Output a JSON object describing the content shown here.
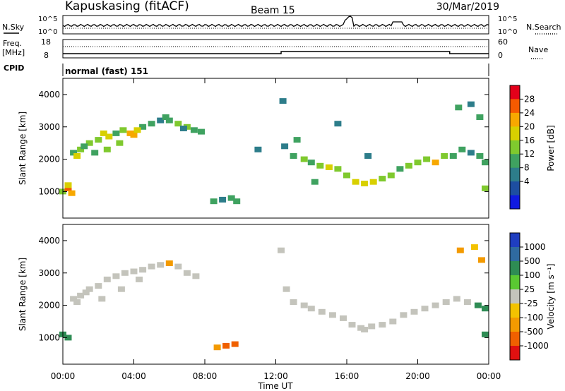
{
  "header": {
    "station": "Kapuskasing (fitACF)",
    "beam": "Beam 15",
    "date": "30/Mar/2019"
  },
  "noise_panel": {
    "left_label": "N.Sky",
    "right_label": "N.Search",
    "left_ticks": [
      "10^5",
      "10^0"
    ],
    "right_ticks": [
      "10^5",
      "10^0"
    ]
  },
  "freq_panel": {
    "left_label_top": "Freq.",
    "left_label_unit": "[MHz]",
    "left_ticks": [
      "18",
      "8"
    ],
    "right_label": "Nave",
    "right_ticks": [
      "60",
      "0"
    ]
  },
  "cpid_panel": {
    "label": "CPID",
    "value": "normal (fast) 151"
  },
  "power_colorbar": {
    "label": "Power [dB]",
    "ticks": [
      "28",
      "24",
      "20",
      "16",
      "12",
      "8",
      "4"
    ],
    "colors": [
      "#e3001a",
      "#f55a00",
      "#f7a800",
      "#d8d000",
      "#7fc92e",
      "#3fa260",
      "#2d7d8a",
      "#1d4ea0",
      "#0f1ae0"
    ]
  },
  "velocity_colorbar": {
    "label": "Velocity [m s⁻¹]",
    "ticks": [
      "1000",
      "500",
      "100",
      "25",
      "-25",
      "-100",
      "-500",
      "-1000"
    ],
    "colors": [
      "#1f3ec0",
      "#2f6aa0",
      "#2e8c54",
      "#5ac832",
      "#c4c4bc",
      "#f3c200",
      "#f39a00",
      "#f06000",
      "#e01010"
    ]
  },
  "chart_data": [
    {
      "type": "heatmap",
      "name": "power",
      "ylabel": "Slant Range [km]",
      "xlim": [
        0,
        24
      ],
      "ylim": [
        180,
        4500
      ],
      "yticks": [
        "4000",
        "3000",
        "2000",
        "1000"
      ],
      "xticks": [
        "00:00",
        "04:00",
        "08:00",
        "12:00",
        "16:00",
        "20:00",
        "00:00"
      ],
      "colorbar_label": "Power [dB]",
      "cells": [
        [
          0.0,
          1000,
          14
        ],
        [
          0.3,
          1100,
          26
        ],
        [
          0.5,
          950,
          22
        ],
        [
          0.3,
          1200,
          18
        ],
        [
          0.6,
          2200,
          12
        ],
        [
          1.0,
          2300,
          14
        ],
        [
          1.5,
          2500,
          16
        ],
        [
          2.0,
          2600,
          14
        ],
        [
          2.3,
          2800,
          20
        ],
        [
          2.6,
          2700,
          18
        ],
        [
          3.0,
          2800,
          12
        ],
        [
          3.4,
          2900,
          14
        ],
        [
          3.8,
          2800,
          24
        ],
        [
          4.0,
          2750,
          22
        ],
        [
          4.5,
          3000,
          12
        ],
        [
          5.0,
          3100,
          10
        ],
        [
          5.5,
          3200,
          8
        ],
        [
          6.0,
          3200,
          12
        ],
        [
          6.5,
          3100,
          14
        ],
        [
          7.0,
          3000,
          16
        ],
        [
          7.4,
          2900,
          12
        ],
        [
          0.8,
          2100,
          18
        ],
        [
          1.2,
          2400,
          10
        ],
        [
          1.8,
          2200,
          12
        ],
        [
          2.5,
          2300,
          14
        ],
        [
          3.2,
          2500,
          16
        ],
        [
          4.2,
          2900,
          18
        ],
        [
          5.8,
          3300,
          10
        ],
        [
          6.8,
          2950,
          8
        ],
        [
          7.8,
          2850,
          12
        ],
        [
          8.5,
          700,
          10
        ],
        [
          9.0,
          750,
          8
        ],
        [
          9.5,
          800,
          12
        ],
        [
          9.8,
          700,
          10
        ],
        [
          13.0,
          2100,
          12
        ],
        [
          13.6,
          2000,
          14
        ],
        [
          14.0,
          1900,
          12
        ],
        [
          14.5,
          1800,
          16
        ],
        [
          15.0,
          1750,
          18
        ],
        [
          15.5,
          1700,
          14
        ],
        [
          16.0,
          1500,
          16
        ],
        [
          16.5,
          1300,
          18
        ],
        [
          17.0,
          1250,
          20
        ],
        [
          17.5,
          1300,
          18
        ],
        [
          18.0,
          1400,
          16
        ],
        [
          18.5,
          1500,
          14
        ],
        [
          19.0,
          1700,
          12
        ],
        [
          19.5,
          1800,
          16
        ],
        [
          20.0,
          1900,
          14
        ],
        [
          20.5,
          2000,
          16
        ],
        [
          21.0,
          1900,
          22
        ],
        [
          21.5,
          2100,
          14
        ],
        [
          22.0,
          2100,
          12
        ],
        [
          22.5,
          2300,
          10
        ],
        [
          23.0,
          2200,
          8
        ],
        [
          23.5,
          2100,
          10
        ],
        [
          23.8,
          1900,
          12
        ],
        [
          12.5,
          2400,
          8
        ],
        [
          13.2,
          2600,
          10
        ],
        [
          17.2,
          2100,
          8
        ],
        [
          14.2,
          1300,
          10
        ],
        [
          22.3,
          3600,
          10
        ],
        [
          23.0,
          3700,
          8
        ],
        [
          23.5,
          3300,
          12
        ],
        [
          23.8,
          1100,
          16
        ],
        [
          11.0,
          2300,
          8
        ],
        [
          12.4,
          3800,
          8
        ],
        [
          15.5,
          3100,
          6
        ]
      ]
    },
    {
      "type": "heatmap",
      "name": "velocity",
      "ylabel": "Slant Range [km]",
      "xlim": [
        0,
        24
      ],
      "ylim": [
        180,
        4500
      ],
      "yticks": [
        "4000",
        "3000",
        "2000",
        "1000"
      ],
      "xticks": [
        "00:00",
        "04:00",
        "08:00",
        "12:00",
        "16:00",
        "20:00",
        "00:00"
      ],
      "xlabel": "Time UT",
      "colorbar_label": "Velocity [m s⁻¹]",
      "cells": [
        [
          0.0,
          1100,
          300
        ],
        [
          0.3,
          1000,
          200
        ],
        [
          0.6,
          2200,
          0
        ],
        [
          1.0,
          2300,
          10
        ],
        [
          1.5,
          2500,
          0
        ],
        [
          2.0,
          2600,
          -10
        ],
        [
          2.5,
          2800,
          5
        ],
        [
          3.0,
          2900,
          0
        ],
        [
          3.5,
          3000,
          -5
        ],
        [
          4.0,
          3050,
          0
        ],
        [
          4.5,
          3100,
          10
        ],
        [
          5.0,
          3200,
          0
        ],
        [
          5.5,
          3250,
          -10
        ],
        [
          6.0,
          3300,
          -200
        ],
        [
          6.5,
          3200,
          0
        ],
        [
          7.0,
          3000,
          0
        ],
        [
          7.5,
          2900,
          5
        ],
        [
          0.8,
          2100,
          0
        ],
        [
          1.3,
          2400,
          0
        ],
        [
          2.2,
          2200,
          0
        ],
        [
          3.3,
          2500,
          0
        ],
        [
          4.3,
          2800,
          -5
        ],
        [
          8.7,
          700,
          -300
        ],
        [
          9.2,
          750,
          -600
        ],
        [
          9.7,
          800,
          -700
        ],
        [
          13.0,
          2100,
          0
        ],
        [
          13.6,
          2000,
          0
        ],
        [
          14.0,
          1900,
          5
        ],
        [
          14.6,
          1800,
          0
        ],
        [
          15.2,
          1700,
          0
        ],
        [
          15.8,
          1600,
          0
        ],
        [
          16.3,
          1400,
          -5
        ],
        [
          16.8,
          1300,
          0
        ],
        [
          17.4,
          1350,
          0
        ],
        [
          18.0,
          1400,
          0
        ],
        [
          18.6,
          1500,
          5
        ],
        [
          19.2,
          1700,
          0
        ],
        [
          19.8,
          1800,
          0
        ],
        [
          20.4,
          1900,
          0
        ],
        [
          21.0,
          2000,
          0
        ],
        [
          21.6,
          2100,
          -5
        ],
        [
          22.2,
          2200,
          0
        ],
        [
          22.8,
          2100,
          0
        ],
        [
          23.4,
          2000,
          150
        ],
        [
          23.8,
          1900,
          120
        ],
        [
          22.4,
          3700,
          -150
        ],
        [
          23.2,
          3800,
          -50
        ],
        [
          23.6,
          3400,
          -200
        ],
        [
          23.8,
          1100,
          400
        ],
        [
          12.6,
          2500,
          0
        ],
        [
          17.0,
          1250,
          0
        ],
        [
          12.3,
          3700,
          0
        ]
      ]
    }
  ]
}
